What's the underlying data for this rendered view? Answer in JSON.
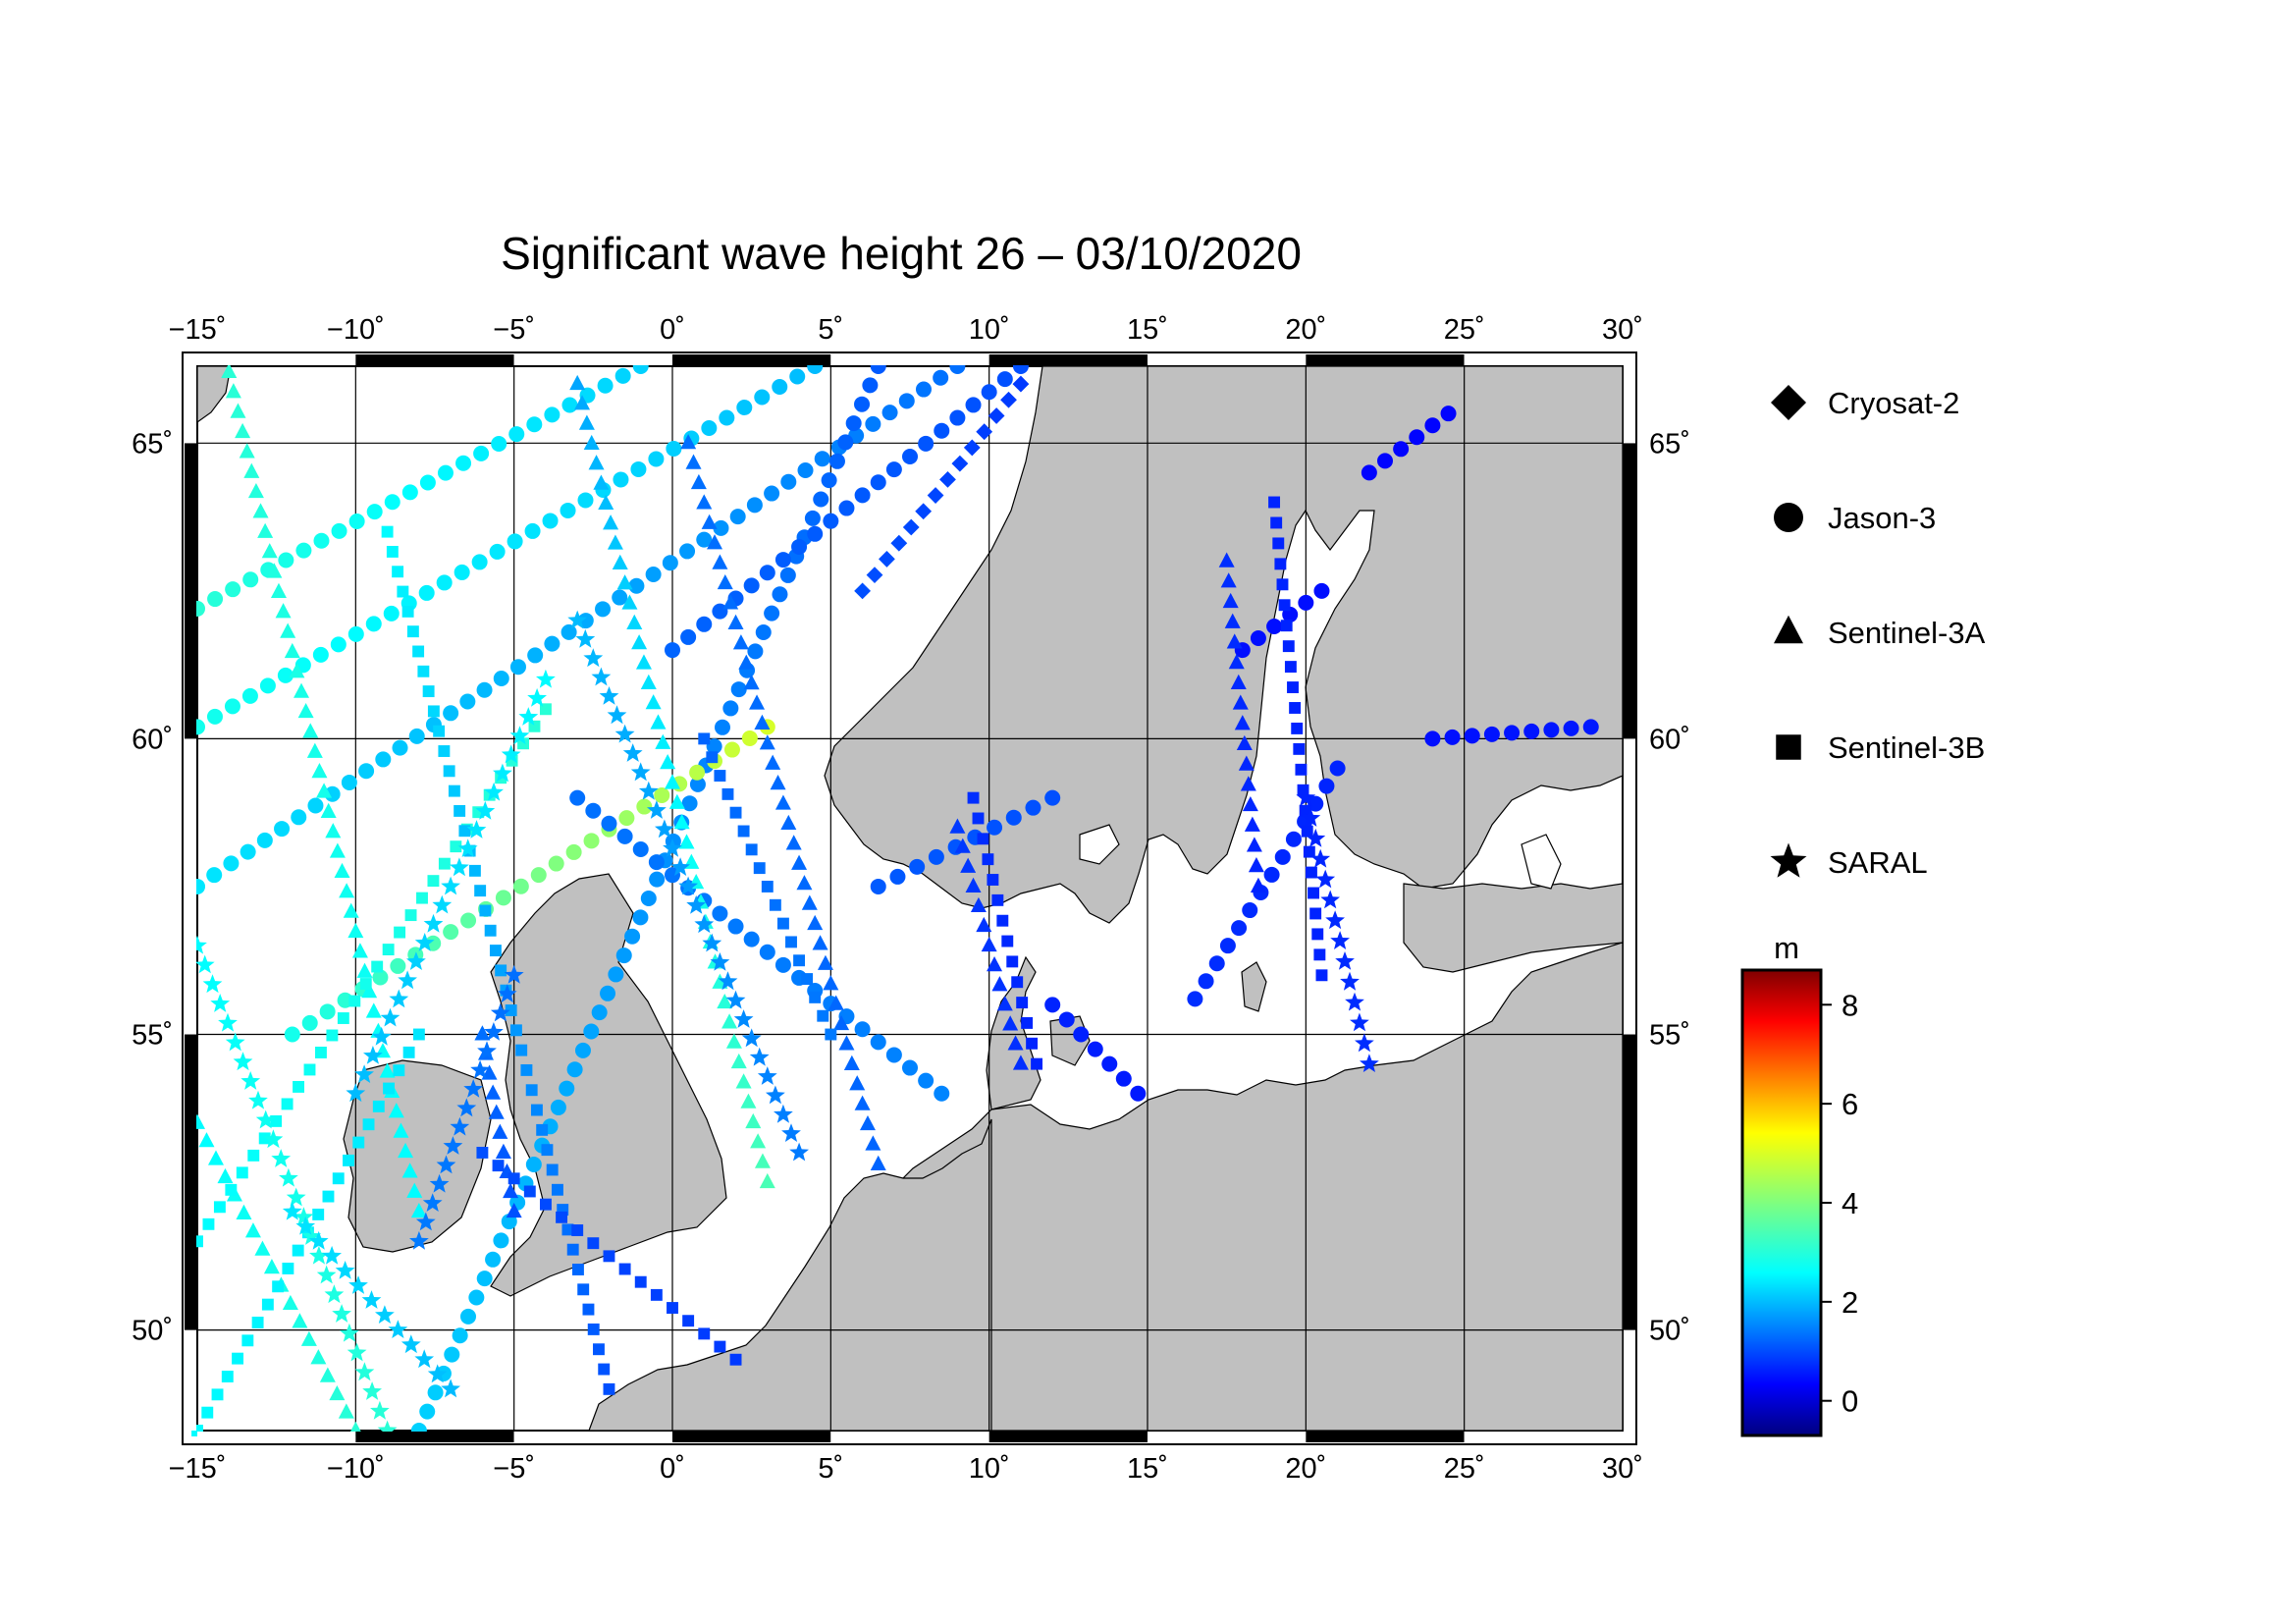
{
  "title": "Significant wave height 26 – 03/10/2020",
  "map": {
    "lon_range": [
      -15,
      30
    ],
    "lat_range": [
      48.3,
      66.3
    ],
    "lon_ticks": [
      "−15˚",
      "−10˚",
      "−5˚",
      "0˚",
      "5˚",
      "10˚",
      "15˚",
      "20˚",
      "25˚",
      "30˚"
    ],
    "lat_ticks_left": [
      "65˚",
      "60˚",
      "55˚",
      "50˚"
    ],
    "lat_ticks_right": [
      "65˚",
      "60˚",
      "55˚",
      "50˚"
    ],
    "land_color": "#c0c0c0",
    "sea_color": "#ffffff",
    "grid": true
  },
  "legend": {
    "items": [
      {
        "label": "Cryosat-2",
        "marker": "diamond"
      },
      {
        "label": "Jason-3",
        "marker": "circle"
      },
      {
        "label": "Sentinel-3A",
        "marker": "triangle"
      },
      {
        "label": "Sentinel-3B",
        "marker": "square"
      },
      {
        "label": "SARAL",
        "marker": "star"
      }
    ]
  },
  "colorbar": {
    "unit": "m",
    "range": [
      -0.7,
      8.7
    ],
    "ticks": [
      "8",
      "6",
      "4",
      "2",
      "0"
    ],
    "tick_values": [
      8,
      6,
      4,
      2,
      0
    ],
    "colormap": "jet"
  },
  "chart_data": {
    "type": "scatter",
    "title": "Significant wave height 26 – 03/10/2020",
    "xlabel": "",
    "ylabel": "",
    "xlim": [
      -15,
      30
    ],
    "ylim": [
      48.3,
      66.3
    ],
    "color_unit": "m",
    "color_range": [
      -0.7,
      8.7
    ],
    "series": [
      {
        "name": "Jason-3",
        "marker": "circle",
        "tracks": [
          {
            "from": [
              -15,
              60.2
            ],
            "to": [
              4.5,
              66.3
            ],
            "wave": [
              3.0,
              2.2
            ]
          },
          {
            "from": [
              -15,
              62.2
            ],
            "to": [
              -1,
              66.3
            ],
            "wave": [
              3.2,
              2.4
            ]
          },
          {
            "from": [
              -15,
              57.5
            ],
            "to": [
              9,
              66.3
            ],
            "wave": [
              2.6,
              1.5
            ]
          },
          {
            "from": [
              -8,
              48.3
            ],
            "to": [
              6.5,
              66.3
            ],
            "wave": [
              2.4,
              1.3
            ]
          },
          {
            "from": [
              -12,
              55.0
            ],
            "to": [
              3,
              60.2
            ],
            "wave": [
              3.0,
              4.8
            ]
          },
          {
            "from": [
              -3,
              59.0
            ],
            "to": [
              8.5,
              54.0
            ],
            "wave": [
              1.5,
              1.7
            ]
          },
          {
            "from": [
              0,
              61.5
            ],
            "to": [
              11,
              66.3
            ],
            "wave": [
              1.4,
              1.2
            ]
          },
          {
            "from": [
              6.5,
              57.5
            ],
            "to": [
              12,
              59.0
            ],
            "wave": [
              1.3,
              1.2
            ]
          },
          {
            "from": [
              12,
              55.5
            ],
            "to": [
              14.7,
              54.0
            ],
            "wave": [
              0.8,
              0.7
            ]
          },
          {
            "from": [
              16.5,
              55.6
            ],
            "to": [
              21,
              59.5
            ],
            "wave": [
              0.9,
              0.8
            ]
          },
          {
            "from": [
              18,
              61.5
            ],
            "to": [
              20.5,
              62.5
            ],
            "wave": [
              0.6,
              0.6
            ]
          },
          {
            "from": [
              22,
              64.5
            ],
            "to": [
              24.5,
              65.5
            ],
            "wave": [
              0.5,
              0.5
            ]
          },
          {
            "from": [
              24,
              60.0
            ],
            "to": [
              29,
              60.2
            ],
            "wave": [
              0.6,
              0.7
            ]
          }
        ]
      },
      {
        "name": "Sentinel-3A",
        "marker": "triangle",
        "tracks": [
          {
            "from": [
              -14,
              66.2
            ],
            "to": [
              -8,
              52.0
            ],
            "wave": [
              3.2,
              2.8
            ]
          },
          {
            "from": [
              -3,
              66.0
            ],
            "to": [
              3,
              52.5
            ],
            "wave": [
              2.0,
              3.5
            ]
          },
          {
            "from": [
              0.5,
              65.0
            ],
            "to": [
              6.5,
              52.8
            ],
            "wave": [
              1.5,
              1.4
            ]
          },
          {
            "from": [
              -15,
              53.5
            ],
            "to": [
              -10,
              48.3
            ],
            "wave": [
              2.8,
              3.2
            ]
          },
          {
            "from": [
              9,
              58.5
            ],
            "to": [
              11,
              54.5
            ],
            "wave": [
              1.0,
              0.9
            ]
          },
          {
            "from": [
              17.5,
              63.0
            ],
            "to": [
              18.5,
              57.5
            ],
            "wave": [
              0.9,
              0.8
            ]
          },
          {
            "from": [
              -6,
              55.0
            ],
            "to": [
              -5,
              52.0
            ],
            "wave": [
              1.5,
              1.2
            ]
          }
        ]
      },
      {
        "name": "Sentinel-3B",
        "marker": "square",
        "tracks": [
          {
            "from": [
              -15,
              51.5
            ],
            "to": [
              -4,
              60.5
            ],
            "wave": [
              2.8,
              3.2
            ]
          },
          {
            "from": [
              -9,
              63.5
            ],
            "to": [
              -2,
              49.0
            ],
            "wave": [
              2.8,
              1.2
            ]
          },
          {
            "from": [
              1,
              60.0
            ],
            "to": [
              5,
              55.0
            ],
            "wave": [
              1.4,
              1.6
            ]
          },
          {
            "from": [
              -15,
              48.3
            ],
            "to": [
              -8,
              55.0
            ],
            "wave": [
              2.8,
              2.6
            ]
          },
          {
            "from": [
              -6,
              53.0
            ],
            "to": [
              2,
              49.5
            ],
            "wave": [
              1.2,
              1.0
            ]
          },
          {
            "from": [
              19,
              64.0
            ],
            "to": [
              20.5,
              56.0
            ],
            "wave": [
              0.8,
              0.8
            ]
          },
          {
            "from": [
              9.5,
              59.0
            ],
            "to": [
              11.5,
              54.5
            ],
            "wave": [
              0.9,
              0.8
            ]
          }
        ]
      },
      {
        "name": "SARAL",
        "marker": "star",
        "tracks": [
          {
            "from": [
              -15,
              56.5
            ],
            "to": [
              -9,
              48.3
            ],
            "wave": [
              2.8,
              3.2
            ]
          },
          {
            "from": [
              -10,
              54.0
            ],
            "to": [
              -4,
              61.0
            ],
            "wave": [
              2.2,
              2.8
            ]
          },
          {
            "from": [
              -3,
              62.0
            ],
            "to": [
              4,
              53.0
            ],
            "wave": [
              2.2,
              1.6
            ]
          },
          {
            "from": [
              -8,
              51.5
            ],
            "to": [
              -5,
              56.0
            ],
            "wave": [
              1.6,
              1.5
            ]
          },
          {
            "from": [
              20,
              59.0
            ],
            "to": [
              22,
              54.5
            ],
            "wave": [
              0.8,
              0.9
            ]
          },
          {
            "from": [
              -12,
              52.0
            ],
            "to": [
              -7,
              49.0
            ],
            "wave": [
              2.6,
              2.2
            ]
          }
        ]
      },
      {
        "name": "Cryosat-2",
        "marker": "diamond",
        "tracks": [
          {
            "from": [
              6,
              62.5
            ],
            "to": [
              11,
              66.0
            ],
            "wave": [
              1.2,
              1.0
            ]
          }
        ]
      }
    ]
  }
}
